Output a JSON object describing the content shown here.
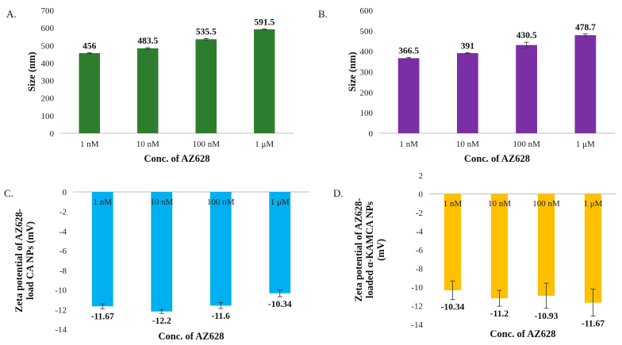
{
  "chart_data": [
    {
      "id": "A",
      "panel_label": "A.",
      "type": "bar",
      "color": "#2e7d2e",
      "categories": [
        "1 nM",
        "10 nM",
        "100 nM",
        "1 μM"
      ],
      "values": [
        456,
        483.5,
        535.5,
        591.5
      ],
      "value_labels": [
        "456",
        "483.5",
        "535.5",
        "591.5"
      ],
      "errors": [
        3,
        4,
        4,
        2
      ],
      "xlabel": "Conc. of AZ628",
      "ylabel": [
        "Size (nm)"
      ],
      "ylim": [
        0,
        700
      ],
      "yticks": [
        0,
        100,
        200,
        300,
        400,
        500,
        600,
        700
      ],
      "category_position": "bottom",
      "grid": false
    },
    {
      "id": "B",
      "panel_label": "B.",
      "type": "bar",
      "color": "#7b2fa5",
      "categories": [
        "1 nM",
        "10 nM",
        "100 nM",
        "1 μM"
      ],
      "values": [
        366.5,
        391,
        430.5,
        478.7
      ],
      "value_labels": [
        "366.5",
        "391",
        "430.5",
        "478.7"
      ],
      "errors": [
        4,
        2,
        14,
        6
      ],
      "xlabel": "Conc. of AZ628",
      "ylabel": [
        "Size (nm)"
      ],
      "ylim": [
        0,
        600
      ],
      "yticks": [
        0,
        100,
        200,
        300,
        400,
        500,
        600
      ],
      "category_position": "bottom",
      "grid": false
    },
    {
      "id": "C",
      "panel_label": "C.",
      "type": "bar",
      "color": "#00b0f0",
      "categories": [
        "1 nM",
        "10 nM",
        "100 nM",
        "1 μM"
      ],
      "values": [
        -11.67,
        -12.2,
        -11.6,
        -10.34
      ],
      "value_labels": [
        "-11.67",
        "-12.2",
        "-11.6",
        "-10.34"
      ],
      "errors": [
        0.25,
        0.2,
        0.3,
        0.35
      ],
      "xlabel": "Conc. of AZ628",
      "ylabel": [
        "Zeta potential of AZ628-",
        "load CA NPs (mV)"
      ],
      "ylim": [
        -14,
        0
      ],
      "yticks": [
        0,
        -2,
        -4,
        -6,
        -8,
        -10,
        -12,
        -14
      ],
      "category_position": "top",
      "grid": false
    },
    {
      "id": "D",
      "panel_label": "D.",
      "type": "bar",
      "color": "#ffc000",
      "categories": [
        "1 nM",
        "10 nM",
        "100 nM",
        "1 μM"
      ],
      "values": [
        -10.34,
        -11.2,
        -10.93,
        -11.67
      ],
      "value_labels": [
        "-10.34",
        "-11.2",
        "-10.93",
        "-11.67"
      ],
      "errors": [
        1.0,
        0.85,
        1.35,
        1.45
      ],
      "xlabel": "Conc. of AZ628",
      "ylabel": [
        "Zeta potential of AZ628-",
        "loaded α-KAMCA NPs",
        "(mV)"
      ],
      "ylim": [
        -14,
        0
      ],
      "yticks": [
        2,
        0,
        -2,
        -4,
        -6,
        -8,
        -10,
        -12,
        -14
      ],
      "category_position": "top",
      "grid": false
    }
  ]
}
